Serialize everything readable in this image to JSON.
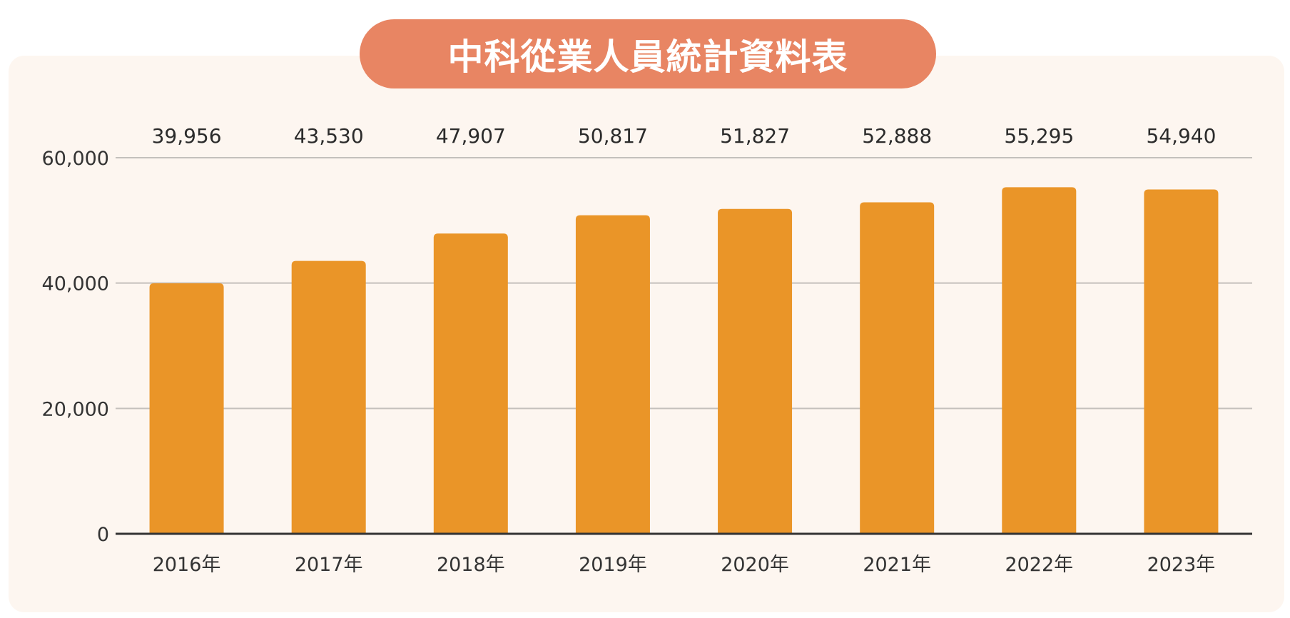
{
  "chart_data": {
    "type": "bar",
    "title": "中科從業人員統計資料表",
    "categories": [
      "2016年",
      "2017年",
      "2018年",
      "2019年",
      "2020年",
      "2021年",
      "2022年",
      "2023年"
    ],
    "values": [
      39956,
      43530,
      47907,
      50817,
      51827,
      52888,
      55295,
      54940
    ],
    "value_labels": [
      "39,956",
      "43,530",
      "47,907",
      "50,817",
      "51,827",
      "52,888",
      "55,295",
      "54,940"
    ],
    "xlabel": "",
    "ylabel": "",
    "ylim": [
      0,
      60000
    ],
    "yticks": [
      0,
      20000,
      40000,
      60000
    ],
    "ytick_labels": [
      "0",
      "20,000",
      "40,000",
      "60,000"
    ],
    "grid": true,
    "legend": "none"
  },
  "colors": {
    "bar": "#ea9528",
    "title_background": "#e88563",
    "card_background": "#fdf6f0",
    "gridline": "#c4c0bc",
    "baseline": "#333333"
  }
}
